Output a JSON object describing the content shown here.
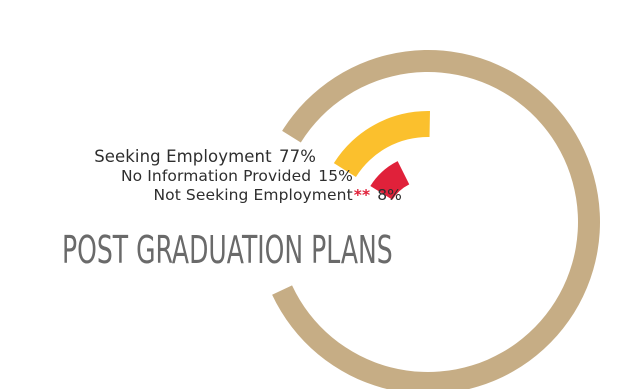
{
  "chart_data": {
    "type": "pie",
    "title": "POST GRADUATION PLANS",
    "categories": [
      "Seeking Employment",
      "No Information Provided",
      "Not Seeking Employment"
    ],
    "values": [
      77,
      15,
      8
    ],
    "value_labels": [
      "77%",
      "15%",
      "8%"
    ],
    "footnote_mark": "**",
    "colors": [
      "#c6ad85",
      "#fbc02d",
      "#e0213a"
    ]
  }
}
